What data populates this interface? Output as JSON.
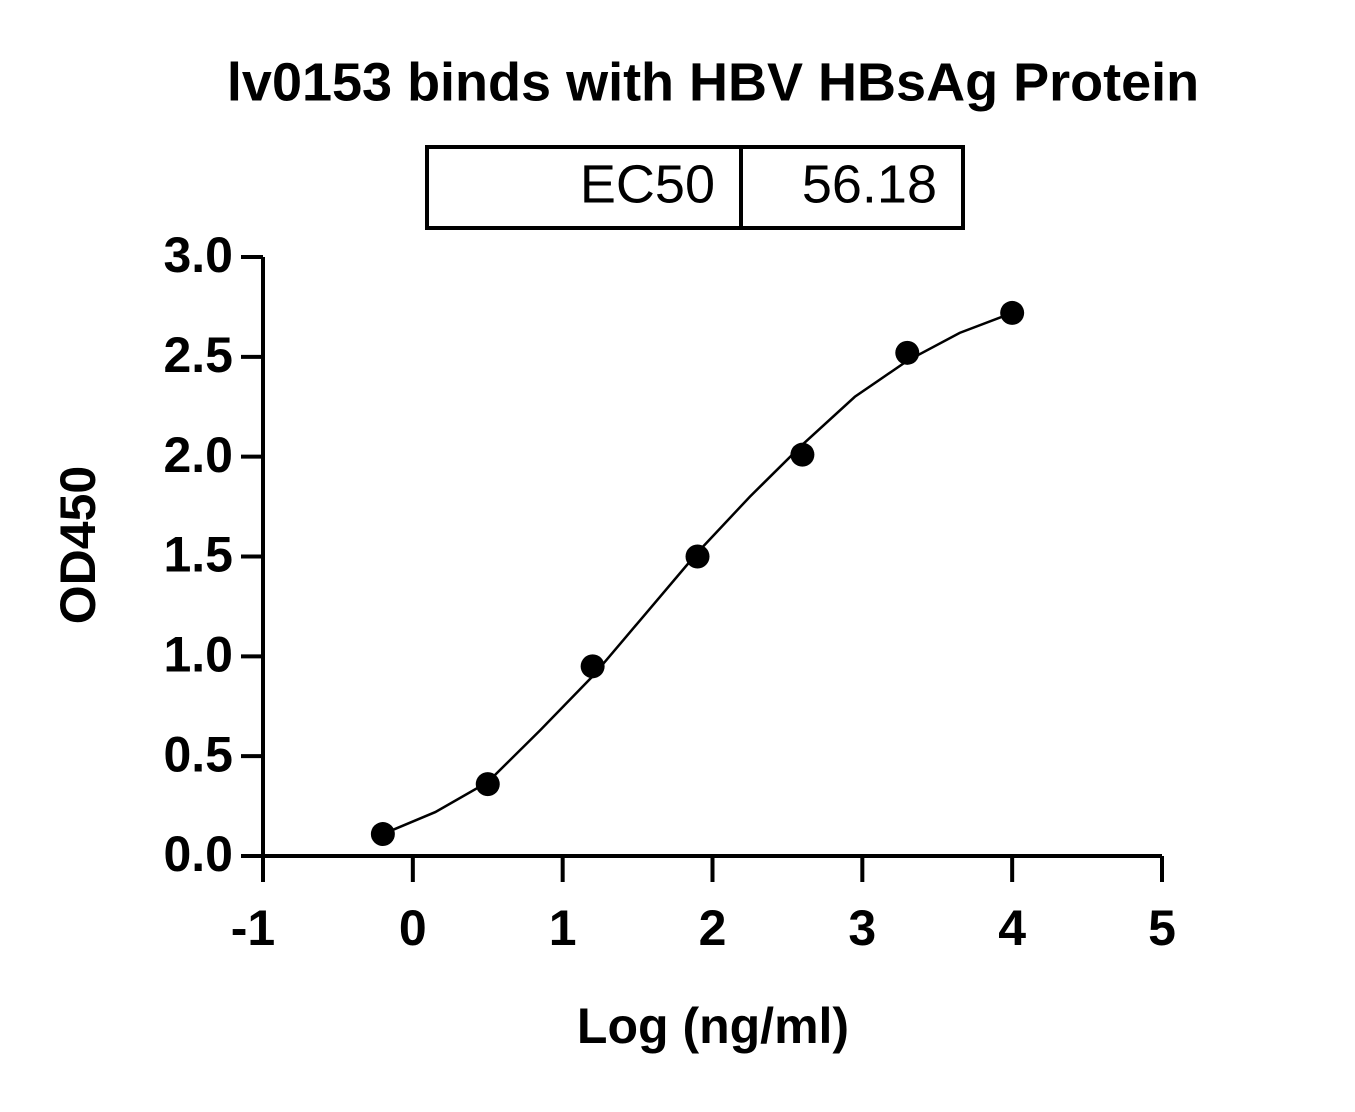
{
  "chart_data": {
    "type": "scatter",
    "title": "lv0153 binds with HBV HBsAg Protein",
    "table": {
      "label": "EC50",
      "value": 56.18
    },
    "x_label": "Log (ng/ml)",
    "y_label": "OD450",
    "x": [
      -0.2,
      0.5,
      1.2,
      1.9,
      2.6,
      3.3,
      4.0
    ],
    "values": [
      0.11,
      0.36,
      0.95,
      1.5,
      2.01,
      2.52,
      2.72
    ],
    "color": "#000000",
    "curve": {
      "x": [
        -0.2,
        0.15,
        0.5,
        0.85,
        1.2,
        1.55,
        1.9,
        2.25,
        2.6,
        2.95,
        3.3,
        3.65,
        4.0
      ],
      "y": [
        0.11,
        0.22,
        0.37,
        0.63,
        0.9,
        1.21,
        1.52,
        1.8,
        2.06,
        2.3,
        2.48,
        2.62,
        2.72
      ]
    },
    "xlim": [
      -1,
      5
    ],
    "ylim": [
      0,
      3
    ],
    "xticks": [
      -1,
      0,
      1,
      2,
      3,
      4,
      5
    ],
    "yticks": [
      {
        "value": 0,
        "label": "0.0"
      },
      {
        "value": 0.5,
        "label": "0.5"
      },
      {
        "value": 1,
        "label": "1.0"
      },
      {
        "value": 1.5,
        "label": "1.5"
      },
      {
        "value": 2,
        "label": "2.0"
      },
      {
        "value": 2.5,
        "label": "2.5"
      },
      {
        "value": 3,
        "label": "3.0"
      }
    ]
  }
}
